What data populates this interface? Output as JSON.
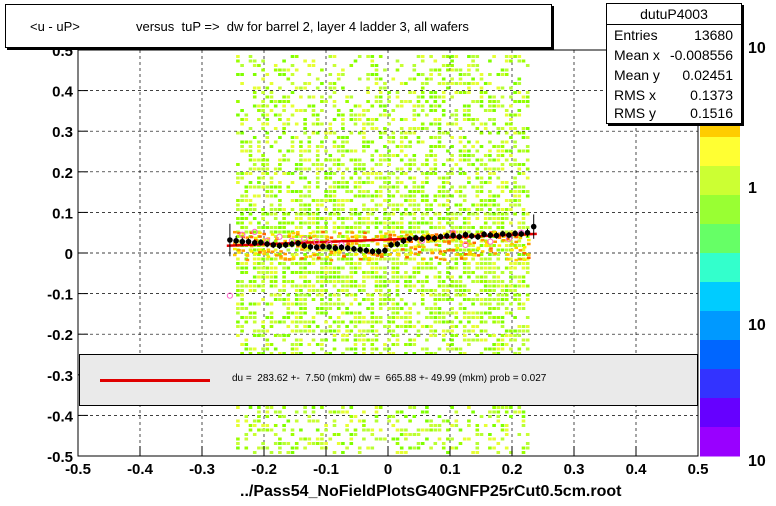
{
  "title": {
    "part1": "<u - uP>",
    "part2": "versus  tuP =>  dw for barrel 2, layer 4 ladder 3, all wafers"
  },
  "stats": {
    "name": "dutuP4003",
    "rows": [
      {
        "label": "Entries",
        "value": "13680"
      },
      {
        "label": "Mean x",
        "value": "-0.008556"
      },
      {
        "label": "Mean y",
        "value": "0.02451"
      },
      {
        "label": "RMS x",
        "value": "0.1373"
      },
      {
        "label": "RMS y",
        "value": "0.1516"
      }
    ]
  },
  "fit": {
    "text": "du =  283.62 +-  7.50 (mkm) dw =  665.88 +- 49.99 (mkm) prob = 0.027",
    "line_color": "#e00000"
  },
  "xfile_label": "../Pass54_NoFieldPlotsG40GNFP25rCut0.5cm.root",
  "palette_labels": [
    "10",
    "1",
    "10",
    "10"
  ],
  "colors": {
    "profile_marker": "#000000",
    "fit_curve": "#e00000",
    "open_marker": "#ff66cc"
  },
  "chart_data": {
    "type": "scatter",
    "xlim": [
      -0.5,
      0.5
    ],
    "ylim": [
      -0.5,
      0.5
    ],
    "grid": true,
    "x_ticks": [
      "-0.5",
      "-0.4",
      "-0.3",
      "-0.2",
      "-0.1",
      "0",
      "0.1",
      "0.2",
      "0.3",
      "0.4",
      "0.5"
    ],
    "y_ticks": [
      "-0.5",
      "-0.4",
      "-0.3",
      "-0.2",
      "-0.1",
      "0",
      "0.1",
      "0.2",
      "0.3",
      "0.4",
      "0.5"
    ],
    "profile": {
      "x": [
        -0.255,
        -0.245,
        -0.235,
        -0.225,
        -0.215,
        -0.205,
        -0.195,
        -0.185,
        -0.175,
        -0.165,
        -0.155,
        -0.145,
        -0.135,
        -0.125,
        -0.115,
        -0.105,
        -0.095,
        -0.085,
        -0.075,
        -0.065,
        -0.055,
        -0.045,
        -0.035,
        -0.025,
        -0.015,
        -0.005,
        0.005,
        0.015,
        0.025,
        0.035,
        0.045,
        0.055,
        0.065,
        0.075,
        0.085,
        0.095,
        0.105,
        0.115,
        0.125,
        0.135,
        0.145,
        0.155,
        0.165,
        0.175,
        0.185,
        0.195,
        0.205,
        0.215,
        0.225,
        0.235
      ],
      "y": [
        0.032,
        0.03,
        0.028,
        0.028,
        0.025,
        0.026,
        0.022,
        0.02,
        0.018,
        0.02,
        0.022,
        0.024,
        0.018,
        0.015,
        0.014,
        0.016,
        0.015,
        0.012,
        0.014,
        0.012,
        0.01,
        0.008,
        0.006,
        0.004,
        0.004,
        0.006,
        0.02,
        0.022,
        0.03,
        0.035,
        0.037,
        0.035,
        0.038,
        0.036,
        0.04,
        0.042,
        0.043,
        0.04,
        0.045,
        0.042,
        0.04,
        0.046,
        0.044,
        0.043,
        0.047,
        0.044,
        0.048,
        0.047,
        0.05,
        0.065
      ],
      "yerr": [
        0.04,
        0.012,
        0.01,
        0.008,
        0.008,
        0.008,
        0.008,
        0.008,
        0.008,
        0.008,
        0.008,
        0.008,
        0.008,
        0.008,
        0.008,
        0.008,
        0.008,
        0.008,
        0.008,
        0.008,
        0.008,
        0.008,
        0.008,
        0.008,
        0.008,
        0.008,
        0.008,
        0.008,
        0.008,
        0.008,
        0.008,
        0.008,
        0.008,
        0.008,
        0.008,
        0.008,
        0.008,
        0.008,
        0.008,
        0.008,
        0.008,
        0.008,
        0.008,
        0.008,
        0.008,
        0.008,
        0.008,
        0.008,
        0.01,
        0.03
      ]
    },
    "open_points": {
      "x": [
        -0.255,
        -0.235,
        -0.215,
        -0.195,
        -0.175,
        -0.155,
        -0.135,
        -0.115,
        -0.095,
        -0.075,
        0.055,
        0.105,
        0.125,
        0.165,
        0.195,
        0.215
      ],
      "y": [
        -0.105,
        0.045,
        0.052,
        0.03,
        0.04,
        0.03,
        0.035,
        0.028,
        0.022,
        0.02,
        0.03,
        0.05,
        0.02,
        0.028,
        0.035,
        0.05
      ]
    },
    "fit_curve": {
      "x": [
        -0.26,
        0.24
      ],
      "y": [
        0.018,
        0.047
      ]
    }
  }
}
